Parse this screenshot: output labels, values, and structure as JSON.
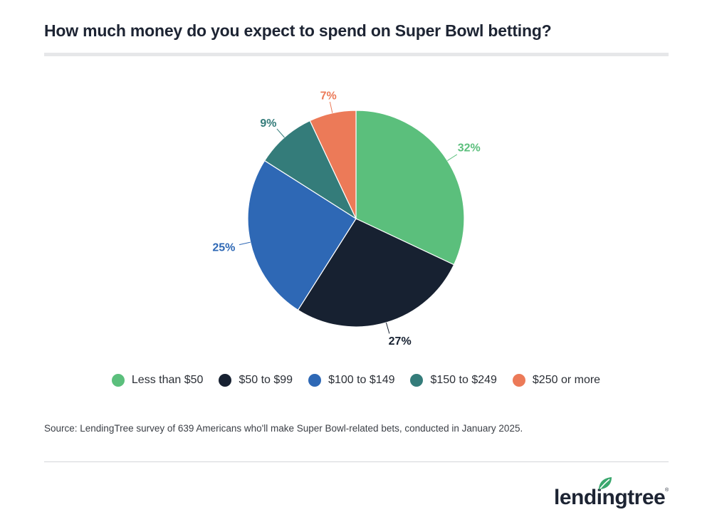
{
  "title": "How much money do you expect to spend on Super Bowl betting?",
  "source": "Source: LendingTree survey of 639 Americans who'll make Super Bowl-related bets, conducted in January 2025.",
  "brand": {
    "name": "lendingtree",
    "reg": "®",
    "leaf_color": "#3aa76d"
  },
  "chart_data": {
    "type": "pie",
    "categories": [
      "Less than $50",
      "$50 to $99",
      "$100 to $149",
      "$150 to $249",
      "$250 or more"
    ],
    "values": [
      32,
      27,
      25,
      9,
      7
    ],
    "labels": [
      "32%",
      "27%",
      "25%",
      "9%",
      "7%"
    ],
    "colors": [
      "#5bbf7c",
      "#172131",
      "#2e68b5",
      "#347c7a",
      "#ec7a58"
    ],
    "label_colors": [
      "#5bbf7c",
      "#172131",
      "#2e68b5",
      "#347c7a",
      "#ec7a58"
    ],
    "legend_position": "bottom",
    "start_angle_deg": 0,
    "direction": "clockwise"
  }
}
